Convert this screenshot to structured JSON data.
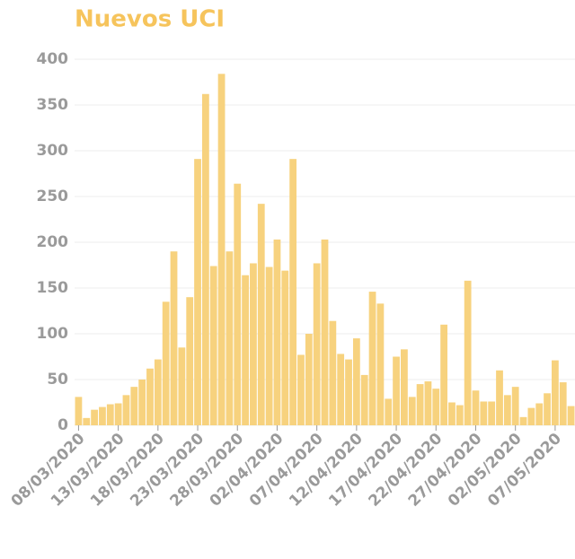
{
  "chart_data": {
    "type": "bar",
    "title": "Nuevos UCI",
    "categories": [
      "08/03/2020",
      null,
      null,
      null,
      null,
      "13/03/2020",
      null,
      null,
      null,
      null,
      "18/03/2020",
      null,
      null,
      null,
      null,
      "23/03/2020",
      null,
      null,
      null,
      null,
      "28/03/2020",
      null,
      null,
      null,
      null,
      "02/04/2020",
      null,
      null,
      null,
      null,
      "07/04/2020",
      null,
      null,
      null,
      null,
      "12/04/2020",
      null,
      null,
      null,
      null,
      "17/04/2020",
      null,
      null,
      null,
      null,
      "22/04/2020",
      null,
      null,
      null,
      null,
      "27/04/2020",
      null,
      null,
      null,
      null,
      "02/05/2020",
      null,
      null,
      null,
      null,
      "07/05/2020",
      null,
      null
    ],
    "values": [
      31,
      8,
      17,
      20,
      23,
      24,
      33,
      42,
      50,
      62,
      72,
      135,
      190,
      85,
      140,
      291,
      362,
      174,
      384,
      190,
      264,
      164,
      177,
      242,
      173,
      203,
      169,
      291,
      77,
      100,
      177,
      203,
      114,
      78,
      72,
      95,
      55,
      146,
      133,
      29,
      75,
      83,
      31,
      45,
      48,
      40,
      110,
      25,
      22,
      158,
      38,
      26,
      26,
      60,
      33,
      42,
      9,
      19,
      24,
      35,
      71,
      47,
      21
    ],
    "color": "#f7d27e",
    "ylim": [
      0,
      400
    ],
    "yticks": [
      0,
      50,
      100,
      150,
      200,
      250,
      300,
      350,
      400
    ],
    "grid": true
  }
}
